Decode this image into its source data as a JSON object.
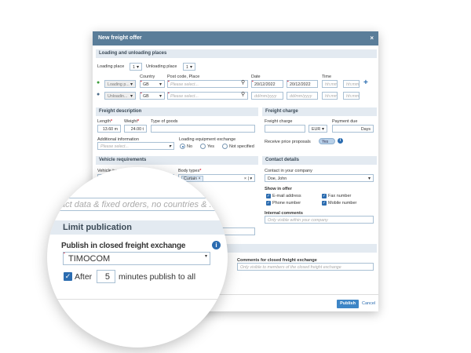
{
  "dialog": {
    "title": "New freight offer",
    "close": "×"
  },
  "loading": {
    "section": "Loading and unloading places",
    "loading_place_label": "Loading place",
    "loading_place_value": "1",
    "unloading_place_label": "Unloading place",
    "unloading_place_value": "1",
    "col_country": "Country",
    "col_postcode": "Post code, Place",
    "col_date": "Date",
    "col_time": "Time",
    "rows": [
      {
        "type": "Loading p...",
        "country": "GB",
        "place_placeholder": "Please select...",
        "date_from": "20/12/2022",
        "date_to": "20/12/2022",
        "time_from": "hh:mm",
        "time_to": "hh:mm"
      },
      {
        "type": "Unloadin...",
        "country": "GB",
        "place_placeholder": "Please select...",
        "date_from": "dd/mm/yyyy",
        "date_to": "dd/mm/yyyy",
        "time_from": "hh:mm",
        "time_to": "hh:mm"
      }
    ],
    "add": "+"
  },
  "freight": {
    "section": "Freight description",
    "length_label": "Length",
    "length": "13.60",
    "length_unit": "m",
    "weight_label": "Weight",
    "weight": "24.00",
    "weight_unit": "t",
    "goods_label": "Type of goods",
    "additional_label": "Additional information",
    "additional_placeholder": "Please select...",
    "exchange_label": "Loading equipment exchange",
    "radios": [
      "No",
      "Yes",
      "Not specified"
    ]
  },
  "charge": {
    "section": "Freight charge",
    "charge_label": "Freight charge",
    "currency": "EUR",
    "due_label": "Payment due",
    "due_unit": "Days",
    "proposals_label": "Receive price proposals",
    "proposals_toggle": "Yes",
    "proposals_on": true
  },
  "vehicle": {
    "section": "Vehicle requirements",
    "type_label": "Vehicle type",
    "body_label": "Body types",
    "body_chip": "Curtain",
    "hidden_placeholder": "cluded"
  },
  "contact": {
    "section": "Contact details",
    "company_label": "Contact in your company",
    "company_value": "Doe, John",
    "show_label": "Show in offer",
    "checks": [
      "E-mail address",
      "Fax number",
      "Phone number",
      "Mobile number"
    ],
    "internal_label": "Internal comments",
    "internal_placeholder": "Only visible within your company"
  },
  "closed": {
    "comments_label": "Comments for closed freight exchange",
    "comments_placeholder": "Only visible to members of the closed freight exchange"
  },
  "footer": {
    "publish": "Publish",
    "cancel": "Cancel"
  },
  "magnifier": {
    "placeholder": "o contact data & fixed orders, no countries & ...",
    "section": "Limit publication",
    "publish_label": "Publish in closed freight exchange",
    "exchange_value": "TIMOCOM",
    "after_label": "After",
    "minutes": "5",
    "minutes_label": "minutes publish to all",
    "after_checked": true
  },
  "colors": {
    "header": "#5a7d99",
    "accent": "#2b6cb0",
    "required": "#d9263a"
  }
}
